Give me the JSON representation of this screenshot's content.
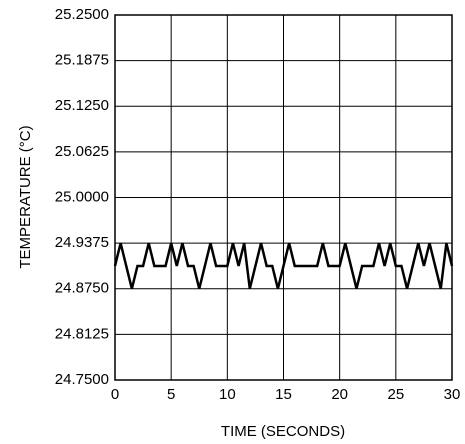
{
  "chart_data": {
    "type": "line",
    "xlabel": "TIME (SECONDS)",
    "ylabel": "TEMPERATURE (°C)",
    "x": [
      0,
      0.5,
      1,
      1.5,
      2,
      2.5,
      3,
      3.5,
      4,
      4.5,
      5,
      5.5,
      6,
      6.5,
      7,
      7.5,
      8,
      8.5,
      9,
      9.5,
      10,
      10.5,
      11,
      11.5,
      12,
      12.5,
      13,
      13.5,
      14,
      14.5,
      15,
      15.5,
      16,
      16.5,
      17,
      17.5,
      18,
      18.5,
      19,
      19.5,
      20,
      20.5,
      21,
      21.5,
      22,
      22.5,
      23,
      23.5,
      24,
      24.5,
      25,
      25.5,
      26,
      26.5,
      27,
      27.5,
      28,
      28.5,
      29,
      29.5,
      30
    ],
    "values": [
      24.90625,
      24.9375,
      24.90625,
      24.875,
      24.90625,
      24.90625,
      24.9375,
      24.90625,
      24.90625,
      24.90625,
      24.9375,
      24.90625,
      24.9375,
      24.90625,
      24.90625,
      24.875,
      24.90625,
      24.9375,
      24.90625,
      24.90625,
      24.90625,
      24.9375,
      24.90625,
      24.9375,
      24.875,
      24.90625,
      24.9375,
      24.90625,
      24.90625,
      24.875,
      24.90625,
      24.9375,
      24.90625,
      24.90625,
      24.90625,
      24.90625,
      24.90625,
      24.9375,
      24.90625,
      24.90625,
      24.90625,
      24.9375,
      24.90625,
      24.875,
      24.90625,
      24.90625,
      24.90625,
      24.9375,
      24.90625,
      24.9375,
      24.90625,
      24.90625,
      24.875,
      24.90625,
      24.9375,
      24.90625,
      24.9375,
      24.90625,
      24.875,
      24.9375,
      24.90625
    ],
    "color": "#000000",
    "xlim": [
      0,
      30
    ],
    "xticks": [
      0,
      5,
      10,
      15,
      20,
      25,
      30
    ],
    "ylim": [
      24.75,
      25.25
    ],
    "yticks": [
      {
        "value": 24.75,
        "label": "24.7500"
      },
      {
        "value": 24.8125,
        "label": "24.8125"
      },
      {
        "value": 24.875,
        "label": "24.8750"
      },
      {
        "value": 24.9375,
        "label": "24.9375"
      },
      {
        "value": 25,
        "label": "25.0000"
      },
      {
        "value": 25.0625,
        "label": "25.0625"
      },
      {
        "value": 25.125,
        "label": "25.1250"
      },
      {
        "value": 25.1875,
        "label": "25.1875"
      },
      {
        "value": 25.25,
        "label": "25.2500"
      }
    ],
    "grid": true
  }
}
